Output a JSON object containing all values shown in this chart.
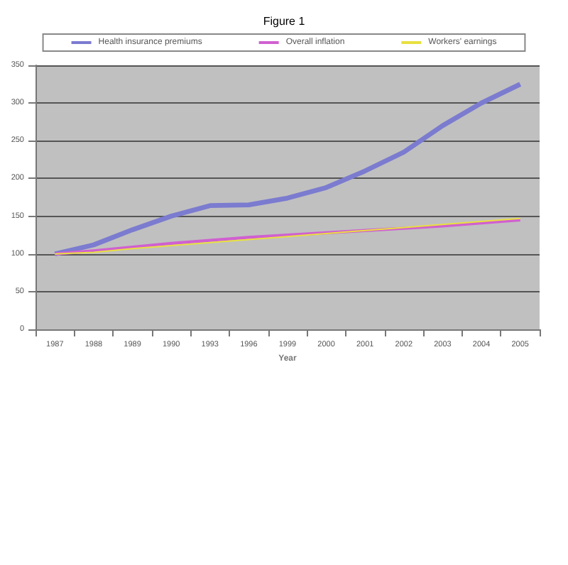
{
  "chart_data": {
    "type": "line",
    "title": "Figure 1",
    "xlabel": "Year",
    "categories": [
      "1987",
      "1988",
      "1989",
      "1990",
      "1993",
      "1996",
      "1999",
      "2000",
      "2001",
      "2002",
      "2003",
      "2004",
      "2005"
    ],
    "series": [
      {
        "name": "Health insurance premiums",
        "color": "#7b7bd0",
        "values": [
          100,
          112,
          132,
          150,
          164,
          165,
          174,
          188,
          210,
          235,
          270,
          300,
          325
        ]
      },
      {
        "name": "Overall inflation",
        "color": "#d060d0",
        "values": [
          100,
          104,
          109,
          114,
          118,
          122,
          125,
          128,
          131,
          134,
          137,
          141,
          145
        ]
      },
      {
        "name": "Workers' earnings",
        "color": "#e8e040",
        "values": [
          100,
          102,
          107,
          111,
          115,
          119,
          123,
          127,
          131,
          135,
          139,
          143,
          147
        ]
      }
    ],
    "ylim": [
      0,
      350
    ],
    "yticks": [
      0,
      50,
      100,
      150,
      200,
      250,
      300,
      350
    ],
    "grid": "y",
    "legend": "top",
    "marker": "none",
    "line_style": "solid"
  }
}
